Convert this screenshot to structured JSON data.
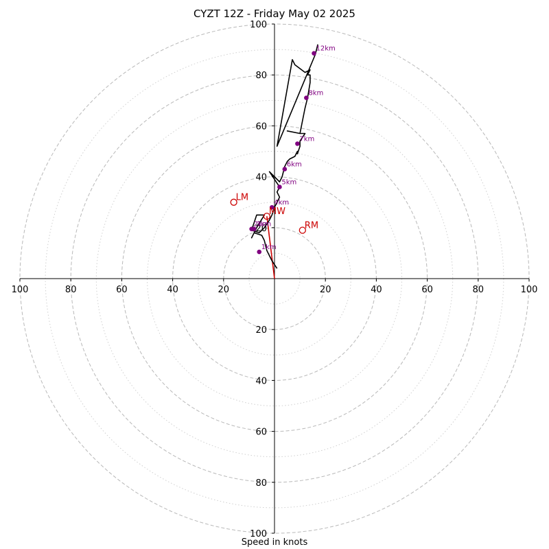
{
  "chart_data": {
    "type": "scatter",
    "subtype": "hodograph",
    "title": "CYZT 12Z - Friday May 02 2025",
    "xlabel": "Speed in knots",
    "ylabel": "",
    "xlim": [
      -100,
      100
    ],
    "ylim": [
      -100,
      100
    ],
    "xtick_labels": [
      "100",
      "80",
      "60",
      "40",
      "20",
      "20",
      "40",
      "60",
      "80",
      "100"
    ],
    "ytick_labels": [
      "100",
      "80",
      "60",
      "40",
      "20",
      "20",
      "40",
      "60",
      "80",
      "100"
    ],
    "rings": {
      "dashed_radii": [
        20,
        40,
        60,
        80,
        100
      ],
      "dotted_radii": [
        10,
        30,
        50,
        70,
        90
      ]
    },
    "grid": true,
    "colors": {
      "trace": "#000000",
      "height_points": "#800080",
      "motion": "#cc0000",
      "grid_dashed": "#b8b8b8",
      "grid_dotted": "#cfcfcf"
    },
    "trace": {
      "x": [
        1,
        -1,
        -3,
        -4,
        -5,
        -8,
        -9,
        -7,
        -4,
        -7,
        -9,
        -6,
        -4,
        -2,
        -1,
        0,
        2,
        1,
        2,
        -2,
        2,
        3,
        4,
        5,
        6,
        8,
        9,
        9,
        10,
        10,
        12,
        10,
        5,
        10,
        12,
        13,
        14,
        14,
        13,
        14,
        12,
        8,
        7,
        1,
        16,
        17
      ],
      "y": [
        4,
        7,
        11,
        15,
        17,
        18,
        16,
        20,
        25,
        25,
        19,
        18,
        20,
        23,
        25,
        28,
        32,
        34,
        36,
        42,
        38,
        40,
        44,
        46,
        47,
        48,
        50,
        49,
        52,
        54,
        57,
        57,
        58,
        57,
        67,
        71,
        77,
        80,
        80,
        82,
        81,
        84,
        86,
        52,
        88,
        92
      ]
    },
    "height_markers": [
      {
        "label": "1km",
        "x": -6,
        "y": 10.5
      },
      {
        "label": "2km",
        "x": -9,
        "y": 19.5
      },
      {
        "label": "3km",
        "x": -8,
        "y": 19.5
      },
      {
        "label": "4km",
        "x": -1,
        "y": 28
      },
      {
        "label": "5km",
        "x": 2,
        "y": 36
      },
      {
        "label": "6km",
        "x": 4,
        "y": 43
      },
      {
        "label": "7km",
        "x": 9,
        "y": 53
      },
      {
        "label": "8km",
        "x": 12.5,
        "y": 71
      },
      {
        "label": "12km",
        "x": 15.5,
        "y": 88.5
      }
    ],
    "storm_motion": [
      {
        "label": "LM",
        "x": -16,
        "y": 30
      },
      {
        "label": "RM",
        "x": 11,
        "y": 19
      },
      {
        "label": "MW",
        "x": -3,
        "y": 24.5
      }
    ],
    "motion_vector": {
      "x": -3,
      "y": 24.5
    }
  }
}
